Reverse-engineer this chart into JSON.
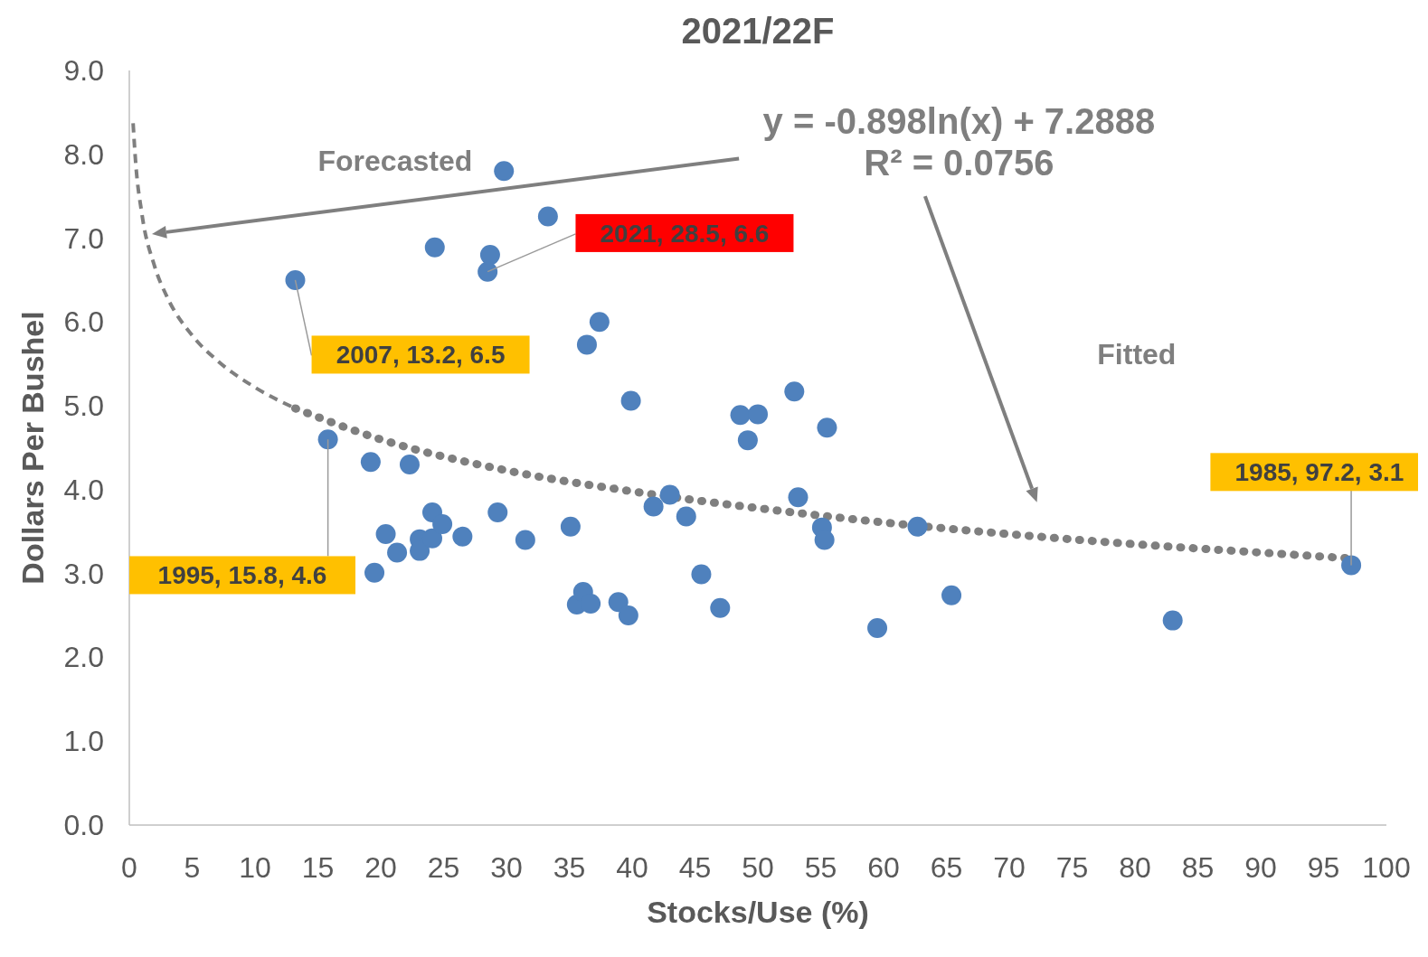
{
  "chart_data": {
    "type": "scatter",
    "title": "2021/22F",
    "xlabel": "Stocks/Use (%)",
    "ylabel": "Dollars Per Bushel",
    "xlim": [
      0,
      100
    ],
    "ylim": [
      0,
      9
    ],
    "xticks": [
      0,
      5,
      10,
      15,
      20,
      25,
      30,
      35,
      40,
      45,
      50,
      55,
      60,
      65,
      70,
      75,
      80,
      85,
      90,
      95,
      100
    ],
    "yticks": [
      {
        "value": 0,
        "label": "0.0"
      },
      {
        "value": 1,
        "label": "1.0"
      },
      {
        "value": 2,
        "label": "2.0"
      },
      {
        "value": 3,
        "label": "3.0"
      },
      {
        "value": 4,
        "label": "4.0"
      },
      {
        "value": 5,
        "label": "5.0"
      },
      {
        "value": 6,
        "label": "6.0"
      },
      {
        "value": 7,
        "label": "7.0"
      },
      {
        "value": 8,
        "label": "8.0"
      },
      {
        "value": 9,
        "label": "9.0"
      }
    ],
    "grid": false,
    "series": [
      {
        "color": "#4f81bd",
        "marker": "circle",
        "x": [
          13.2,
          15.8,
          19.2,
          19.5,
          20.4,
          21.3,
          22.3,
          23.1,
          23.1,
          24.1,
          24.1,
          24.3,
          24.9,
          26.5,
          28.5,
          28.7,
          29.3,
          29.8,
          31.5,
          33.3,
          35.1,
          35.6,
          36.1,
          36.4,
          36.7,
          37.4,
          38.9,
          39.7,
          39.9,
          41.7,
          43.0,
          44.3,
          45.5,
          47.0,
          48.6,
          49.2,
          50.0,
          52.9,
          53.2,
          55.1,
          55.3,
          55.5,
          59.5,
          62.7,
          65.4,
          83.0,
          97.2
        ],
        "values": [
          6.5,
          4.6,
          4.33,
          3.01,
          3.47,
          3.25,
          4.3,
          3.41,
          3.27,
          3.73,
          3.42,
          6.89,
          3.59,
          3.44,
          6.6,
          6.8,
          3.73,
          7.8,
          3.4,
          7.26,
          3.56,
          2.63,
          2.78,
          5.73,
          2.64,
          6.0,
          2.66,
          2.5,
          5.06,
          3.8,
          3.94,
          3.68,
          2.99,
          2.59,
          4.89,
          4.59,
          4.9,
          5.17,
          3.91,
          3.55,
          3.4,
          4.74,
          2.35,
          3.56,
          2.74,
          2.44,
          3.1
        ]
      },
      {
        "type": "line",
        "color": "#7f7f7f",
        "marker": "none",
        "line_style": "dashed",
        "x": [
          0.3,
          0.5,
          1,
          2,
          3,
          5,
          7,
          10,
          13.2
        ],
        "values": [
          8.37,
          7.91,
          7.29,
          6.67,
          6.3,
          5.84,
          5.54,
          5.22,
          4.97
        ]
      },
      {
        "type": "line",
        "color": "#7f7f7f",
        "marker": "none",
        "line_style": "dotted",
        "x": [
          13.2,
          20,
          30,
          40,
          50,
          60,
          70,
          80,
          90,
          97.2
        ],
        "values": [
          4.97,
          4.6,
          4.23,
          3.98,
          3.78,
          3.61,
          3.47,
          3.35,
          3.25,
          3.18
        ]
      }
    ],
    "annotations": [
      "y = -0.898ln(x) + 7.2888",
      "R² = 0.0756",
      "Forecasted",
      "Fitted",
      {
        "text": "2007, 13.2, 6.5",
        "x": 13.2,
        "y": 6.5
      },
      {
        "text": "2021, 28.5, 6.6",
        "x": 28.5,
        "y": 6.6
      },
      {
        "text": "1995, 15.8, 4.6",
        "x": 15.8,
        "y": 4.6
      },
      {
        "text": "1985, 97.2, 3.1",
        "x": 97.2,
        "y": 3.1
      }
    ]
  }
}
